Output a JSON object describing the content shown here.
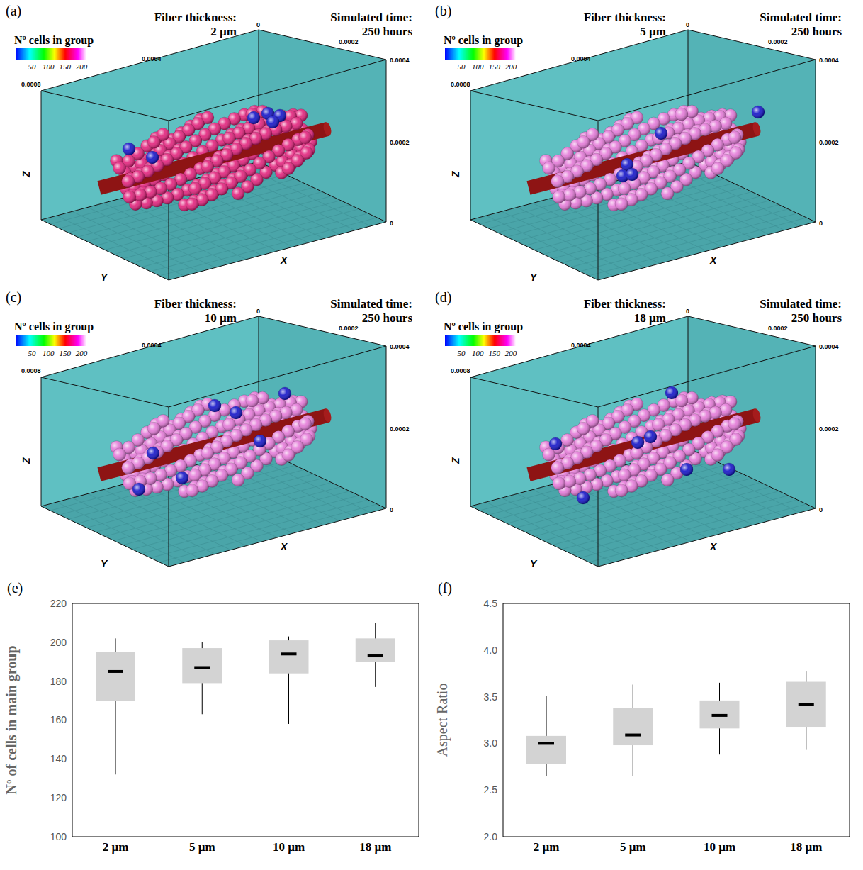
{
  "panels": [
    {
      "letter": "(a)",
      "fiber_label": "Fiber thickness:",
      "fiber_value": "2 µm",
      "time_label": "Simulated time:",
      "time_value": "250 hours",
      "color": "#e2227c"
    },
    {
      "letter": "(b)",
      "fiber_label": "Fiber thickness:",
      "fiber_value": "5 µm",
      "time_label": "Simulated time:",
      "time_value": "250 hours",
      "color": "#e47ad8"
    },
    {
      "letter": "(c)",
      "fiber_label": "Fiber thickness:",
      "fiber_value": "10 µm",
      "time_label": "Simulated time:",
      "time_value": "250 hours",
      "color": "#e47ad8"
    },
    {
      "letter": "(d)",
      "fiber_label": "Fiber thickness:",
      "fiber_value": "18 µm",
      "time_label": "Simulated time:",
      "time_value": "250 hours",
      "color": "#e47ad8"
    }
  ],
  "colorbar": {
    "title": "Nº cells in group",
    "range": [
      1,
      215
    ],
    "ticks": [
      50,
      100,
      150,
      200
    ]
  },
  "frame": {
    "edge_ticks": [
      "0",
      "0.0002",
      "0.0004",
      "0.0008"
    ],
    "right_ticks": [
      "0.0004",
      "0.0002",
      "0"
    ],
    "axis_labels": [
      "X",
      "Y",
      "Z"
    ]
  },
  "chart_data": [
    {
      "type": "box",
      "panel": "(e)",
      "categories": [
        "2 µm",
        "5 µm",
        "10 µm",
        "18 µm"
      ],
      "min": [
        132,
        163,
        158,
        177
      ],
      "q1": [
        170,
        179,
        184,
        190
      ],
      "median": [
        185,
        187,
        194,
        193
      ],
      "q3": [
        195,
        197,
        201,
        202
      ],
      "max": [
        202,
        200,
        203,
        210
      ],
      "ylabel": "Nº of cells in main group",
      "ylim": [
        100,
        220
      ],
      "yticks": [
        100,
        120,
        140,
        160,
        180,
        200,
        220
      ],
      "color": "#d3d3d3"
    },
    {
      "type": "box",
      "panel": "(f)",
      "categories": [
        "2 µm",
        "5 µm",
        "10 µm",
        "18 µm"
      ],
      "min": [
        2.65,
        2.65,
        2.88,
        2.93
      ],
      "q1": [
        2.78,
        2.98,
        3.16,
        3.17
      ],
      "median": [
        3.0,
        3.09,
        3.3,
        3.42
      ],
      "q3": [
        3.08,
        3.38,
        3.46,
        3.66
      ],
      "max": [
        3.51,
        3.63,
        3.65,
        3.77
      ],
      "ylabel": "Aspect Ratio",
      "ylim": [
        2,
        4.5
      ],
      "yticks": [
        {
          "value": 2,
          "label": "2.0"
        },
        2.5,
        {
          "value": 3,
          "label": "3.0"
        },
        3.5,
        {
          "value": 4,
          "label": "4.0"
        },
        4.5
      ],
      "color": "#d3d3d3"
    }
  ]
}
